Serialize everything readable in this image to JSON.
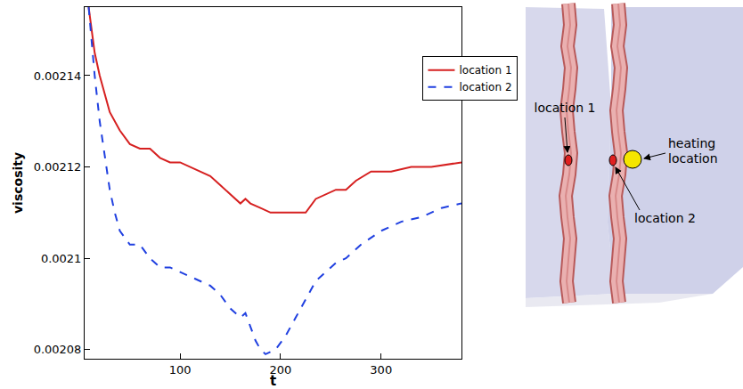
{
  "chart_data": {
    "type": "line",
    "x_label": "t",
    "y_label": "viscosity",
    "xlim": [
      5,
      380
    ],
    "xticks": [
      100,
      200,
      300
    ],
    "ylim": [
      0.002078,
      0.002155
    ],
    "yticks": [
      0.00208,
      0.0021,
      0.00212,
      0.00214
    ],
    "grid": false,
    "legend": "upper right",
    "series": [
      {
        "name": "location 1",
        "color": "#d62020",
        "line_style": "solid",
        "x": [
          9,
          12,
          15,
          20,
          25,
          30,
          40,
          50,
          60,
          70,
          80,
          90,
          100,
          110,
          120,
          130,
          140,
          150,
          160,
          165,
          170,
          180,
          190,
          200,
          210,
          225,
          235,
          245,
          255,
          265,
          275,
          290,
          310,
          330,
          350,
          380
        ],
        "values": [
          0.002155,
          0.00215,
          0.002145,
          0.00214,
          0.002136,
          0.002132,
          0.002128,
          0.002125,
          0.002124,
          0.002124,
          0.002122,
          0.002121,
          0.002121,
          0.00212,
          0.002119,
          0.002118,
          0.002116,
          0.002114,
          0.002112,
          0.002113,
          0.002112,
          0.002111,
          0.00211,
          0.00211,
          0.00211,
          0.00211,
          0.002113,
          0.002114,
          0.002115,
          0.002115,
          0.002117,
          0.002119,
          0.002119,
          0.00212,
          0.00212,
          0.002121
        ]
      },
      {
        "name": "location 2",
        "color": "#2040e0",
        "line_style": "dash",
        "x": [
          9,
          12,
          15,
          20,
          25,
          30,
          35,
          40,
          50,
          60,
          70,
          80,
          90,
          100,
          110,
          120,
          130,
          140,
          150,
          160,
          165,
          170,
          175,
          180,
          185,
          195,
          205,
          215,
          225,
          235,
          245,
          255,
          265,
          280,
          300,
          320,
          340,
          360,
          380
        ],
        "values": [
          0.002155,
          0.002148,
          0.00214,
          0.00213,
          0.002122,
          0.002115,
          0.00211,
          0.002106,
          0.002103,
          0.002103,
          0.0021,
          0.002098,
          0.002098,
          0.002097,
          0.002096,
          0.002095,
          0.002094,
          0.002092,
          0.002089,
          0.002087,
          0.002088,
          0.002085,
          0.002082,
          0.00208,
          0.002079,
          0.00208,
          0.002083,
          0.002087,
          0.002091,
          0.002095,
          0.002097,
          0.002099,
          0.0021,
          0.002103,
          0.002106,
          0.002108,
          0.002109,
          0.002111,
          0.002112
        ]
      }
    ]
  },
  "diagram": {
    "labels": {
      "location_1": "location 1",
      "location_2": "location 2",
      "heating": "heating location"
    }
  }
}
